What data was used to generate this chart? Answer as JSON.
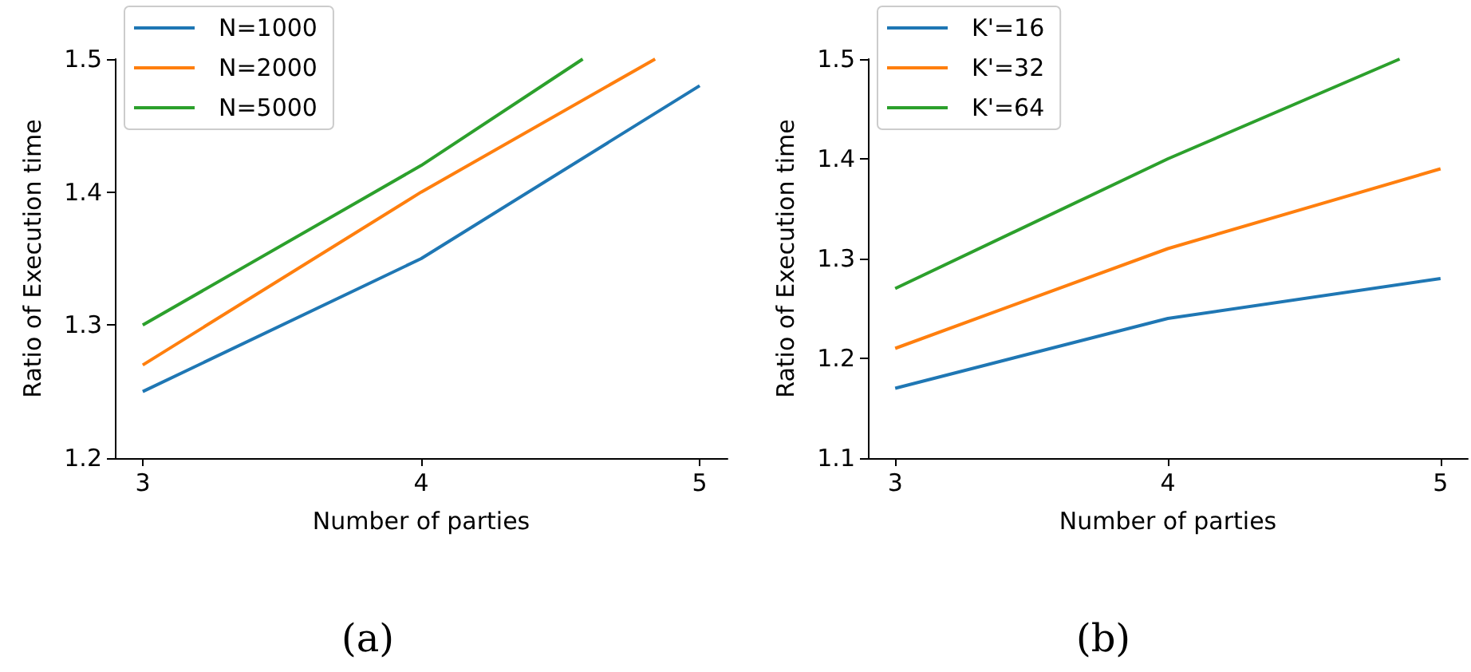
{
  "chart_data": [
    {
      "type": "line",
      "title": "(a)",
      "xlabel": "Number of parties",
      "ylabel": "Ratio of Execution time",
      "xlim": [
        2.9,
        5.1
      ],
      "xticks": [
        3,
        4,
        5
      ],
      "ylim": [
        1.2,
        1.5
      ],
      "yticks": [
        1.2,
        1.3,
        1.4,
        1.5
      ],
      "grid": false,
      "legend": "top left",
      "marker": "none",
      "line_style": "solid",
      "series": [
        {
          "name": "N=1000",
          "color": "#1f77b4",
          "x": [
            3,
            4,
            5
          ],
          "values": [
            1.25,
            1.35,
            1.48
          ]
        },
        {
          "name": "N=2000",
          "color": "#ff7f0e",
          "x": [
            3,
            4,
            4.84
          ],
          "values": [
            1.27,
            1.4,
            1.5
          ]
        },
        {
          "name": "N=5000",
          "color": "#2ca02c",
          "x": [
            3,
            4,
            4.58
          ],
          "values": [
            1.3,
            1.42,
            1.5
          ]
        }
      ]
    },
    {
      "type": "line",
      "title": "(b)",
      "xlabel": "Number of parties",
      "ylabel": "Ratio of Execution time",
      "xlim": [
        2.9,
        5.1
      ],
      "xticks": [
        3,
        4,
        5
      ],
      "ylim": [
        1.1,
        1.5
      ],
      "yticks": [
        1.1,
        1.2,
        1.3,
        1.4,
        1.5
      ],
      "grid": false,
      "legend": "top left",
      "marker": "none",
      "line_style": "solid",
      "series": [
        {
          "name": "K'=16",
          "color": "#1f77b4",
          "x": [
            3,
            4,
            5
          ],
          "values": [
            1.17,
            1.24,
            1.28
          ]
        },
        {
          "name": "K'=32",
          "color": "#ff7f0e",
          "x": [
            3,
            4,
            5
          ],
          "values": [
            1.21,
            1.31,
            1.39
          ]
        },
        {
          "name": "K'=64",
          "color": "#2ca02c",
          "x": [
            3,
            4,
            4.85
          ],
          "values": [
            1.27,
            1.4,
            1.5
          ]
        }
      ]
    }
  ]
}
